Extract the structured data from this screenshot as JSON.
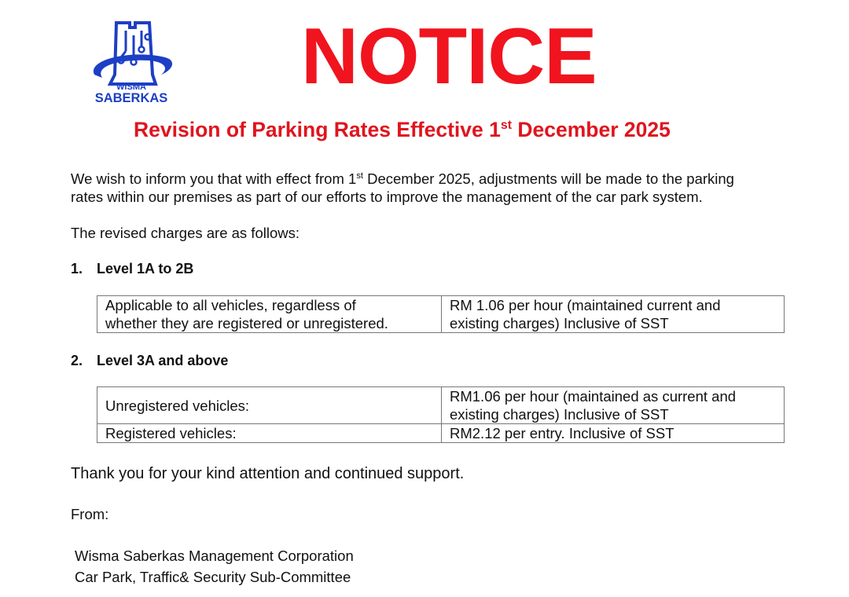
{
  "logo": {
    "line1": "WISMA",
    "line2": "SABERKAS",
    "color": "#1d3fc4"
  },
  "title": "NOTICE",
  "subtitle": {
    "text": "Revision of Parking Rates Effective 1",
    "sup": "st",
    "rest": " December 2025"
  },
  "intro": {
    "a": "We wish to inform you that with effect from 1",
    "sup": "st",
    "b": " December 2025, adjustments will be made to the parking",
    "line2": "rates within our premises as part of our efforts to improve the management of the car park system."
  },
  "lead": "The revised charges are as follows:",
  "sections": [
    {
      "num": "1.",
      "heading": "Level 1A to 2B",
      "rows": [
        {
          "who": [
            "Applicable to all vehicles, regardless of",
            "whether they are registered or unregistered."
          ],
          "rate": [
            "RM 1.06 per hour (maintained current and",
            "existing charges) Inclusive of SST"
          ]
        }
      ]
    },
    {
      "num": "2.",
      "heading": "Level 3A and above",
      "rows": [
        {
          "who": [
            "Unregistered vehicles:"
          ],
          "rate": [
            "RM1.06 per hour (maintained as current and",
            "existing charges) Inclusive of SST"
          ]
        },
        {
          "who": [
            "Registered vehicles:"
          ],
          "rate": [
            "RM2.12 per entry. Inclusive of SST"
          ]
        }
      ]
    }
  ],
  "thanks": "Thank you for your kind attention and continued support.",
  "from": "From:",
  "signature": [
    "Wisma Saberkas Management Corporation",
    "Car Park, Traffic& Security Sub-Committee"
  ],
  "colors": {
    "title": "#f0141e"
  }
}
